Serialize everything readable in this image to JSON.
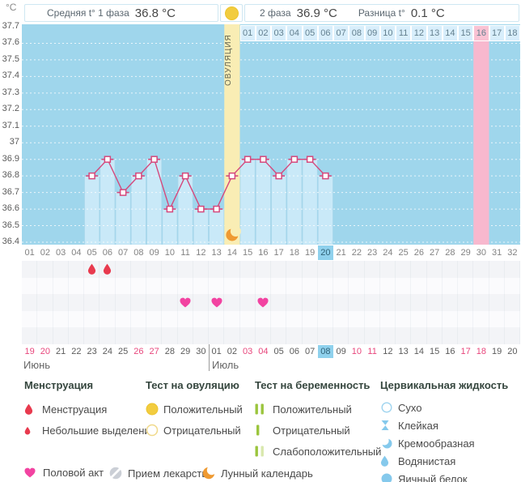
{
  "header": {
    "unit": "°C",
    "phase1": "Средняя t° 1 фаза",
    "phase1_value": "36.8 °C",
    "phase2": "2 фаза",
    "phase2_value": "36.9 °C",
    "diff": "Разница t°",
    "diff_value": "0.1 °C"
  },
  "chart_data": {
    "type": "line",
    "ylabel": "°C",
    "ylim": [
      36.4,
      37.7
    ],
    "ytick_step": 0.1,
    "yticks": [
      "37.7",
      "37.6",
      "37.5",
      "37.4",
      "37.3",
      "37.2",
      "37.1",
      "37",
      "36.9",
      "36.8",
      "36.7",
      "36.6",
      "36.5",
      "36.4"
    ],
    "grid": "dotted-white-horizontal",
    "cycle_days": [
      "01",
      "02",
      "03",
      "04",
      "05",
      "06",
      "07",
      "08",
      "09",
      "10",
      "11",
      "12",
      "13",
      "14",
      "15",
      "16",
      "17",
      "18",
      "19",
      "20",
      "21",
      "22",
      "23",
      "24",
      "25",
      "26",
      "27",
      "28",
      "29",
      "30",
      "31",
      "32"
    ],
    "today_cycle_day": "20",
    "points": [
      {
        "day": 5,
        "temp": 36.8
      },
      {
        "day": 6,
        "temp": 36.9
      },
      {
        "day": 7,
        "temp": 36.7
      },
      {
        "day": 8,
        "temp": 36.8
      },
      {
        "day": 9,
        "temp": 36.9
      },
      {
        "day": 10,
        "temp": 36.6
      },
      {
        "day": 11,
        "temp": 36.8
      },
      {
        "day": 12,
        "temp": 36.6
      },
      {
        "day": 13,
        "temp": 36.6
      },
      {
        "day": 14,
        "temp": 36.8
      },
      {
        "day": 15,
        "temp": 36.9
      },
      {
        "day": 16,
        "temp": 36.9
      },
      {
        "day": 17,
        "temp": 36.8
      },
      {
        "day": 18,
        "temp": 36.9
      },
      {
        "day": 19,
        "temp": 36.9
      },
      {
        "day": 20,
        "temp": 36.8
      }
    ],
    "ovulation": {
      "day": 14,
      "label": "ОВУЛЯЦИЯ"
    },
    "moon_day": 14,
    "expected_period_cycle_day": 30,
    "dpo_labels": [
      "01",
      "02",
      "03",
      "04",
      "05",
      "06",
      "07",
      "08",
      "09",
      "10",
      "11",
      "12",
      "13",
      "14",
      "15",
      "16",
      "17",
      "18"
    ],
    "dpo_highlighted": "16",
    "colors": {
      "plot_bg": "#9fd6ec",
      "bar": "#c9e9f8",
      "bar_border": "#abd7ea",
      "line": "#d5487c",
      "ovulation_column": "#f9edb4",
      "expected_period": "#f8b8ce",
      "today_highlight": "#8fd1ed",
      "weekend_text": "#e8467c",
      "yellow": "#f2cc3f",
      "green": "#9bc53d",
      "pale_green": "#d9e8ad",
      "blue_icon": "#85c9ec",
      "red_drop": "#e83a4e",
      "pink_heart": "#f243a1",
      "orange_moon": "#ef9a32",
      "pill_gray": "#cbcfd6"
    }
  },
  "symbols_grid": {
    "rows": 5,
    "marks": [
      {
        "row": 0,
        "day": 5,
        "icon": "drop-icon",
        "label": "Менструация"
      },
      {
        "row": 0,
        "day": 6,
        "icon": "drop-icon",
        "label": "Менструация"
      },
      {
        "row": 2,
        "day": 11,
        "icon": "heart-icon",
        "label": "Половой акт"
      },
      {
        "row": 2,
        "day": 13,
        "icon": "heart-icon",
        "label": "Половой акт"
      },
      {
        "row": 2,
        "day": 16,
        "icon": "heart-icon",
        "label": "Половой акт"
      }
    ]
  },
  "dates": {
    "months": [
      {
        "name": "Июнь",
        "start_cycle_day": 1,
        "days": [
          "19",
          "20",
          "21",
          "22",
          "23",
          "24",
          "25",
          "26",
          "27",
          "28",
          "29",
          "30"
        ],
        "weekend_days": [
          "19",
          "20",
          "26",
          "27"
        ]
      },
      {
        "name": "Июль",
        "start_cycle_day": 13,
        "days": [
          "01",
          "02",
          "03",
          "04",
          "05",
          "06",
          "07",
          "08",
          "09",
          "10",
          "11",
          "12",
          "13",
          "14",
          "15",
          "16",
          "17",
          "18",
          "19",
          "20"
        ],
        "weekend_days": [
          "03",
          "04",
          "10",
          "11",
          "17",
          "18"
        ],
        "today": "08"
      }
    ]
  },
  "legend": {
    "groups": [
      {
        "title": "Менструация",
        "items": [
          {
            "icon": "drop-icon",
            "label": "Менструация"
          },
          {
            "icon": "drop-small-icon",
            "label": "Небольшие выделения"
          }
        ]
      },
      {
        "title": "Тест на овуляцию",
        "items": [
          {
            "icon": "ovulation-positive-icon",
            "label": "Положительный"
          },
          {
            "icon": "ovulation-negative-icon",
            "label": "Отрицательный"
          }
        ]
      },
      {
        "title": "Тест на беременность",
        "items": [
          {
            "icon": "pregnancy-positive-icon",
            "label": "Положительный"
          },
          {
            "icon": "pregnancy-negative-icon",
            "label": "Отрицательный"
          },
          {
            "icon": "pregnancy-weak-icon",
            "label": "Слабоположительный"
          }
        ]
      },
      {
        "title": "Цервикальная жидкость",
        "items": [
          {
            "icon": "dry-icon",
            "label": "Сухо"
          },
          {
            "icon": "sticky-icon",
            "label": "Клейкая"
          },
          {
            "icon": "creamy-icon",
            "label": "Кремообразная"
          },
          {
            "icon": "watery-icon",
            "label": "Водянистая"
          },
          {
            "icon": "eggwhite-icon",
            "label": "Яичный белок"
          }
        ]
      }
    ],
    "misc": [
      {
        "icon": "heart-icon",
        "label": "Половой акт"
      },
      {
        "icon": "pill-icon",
        "label": "Прием лекарств"
      },
      {
        "icon": "moon-icon",
        "label": "Лунный календарь"
      }
    ]
  }
}
